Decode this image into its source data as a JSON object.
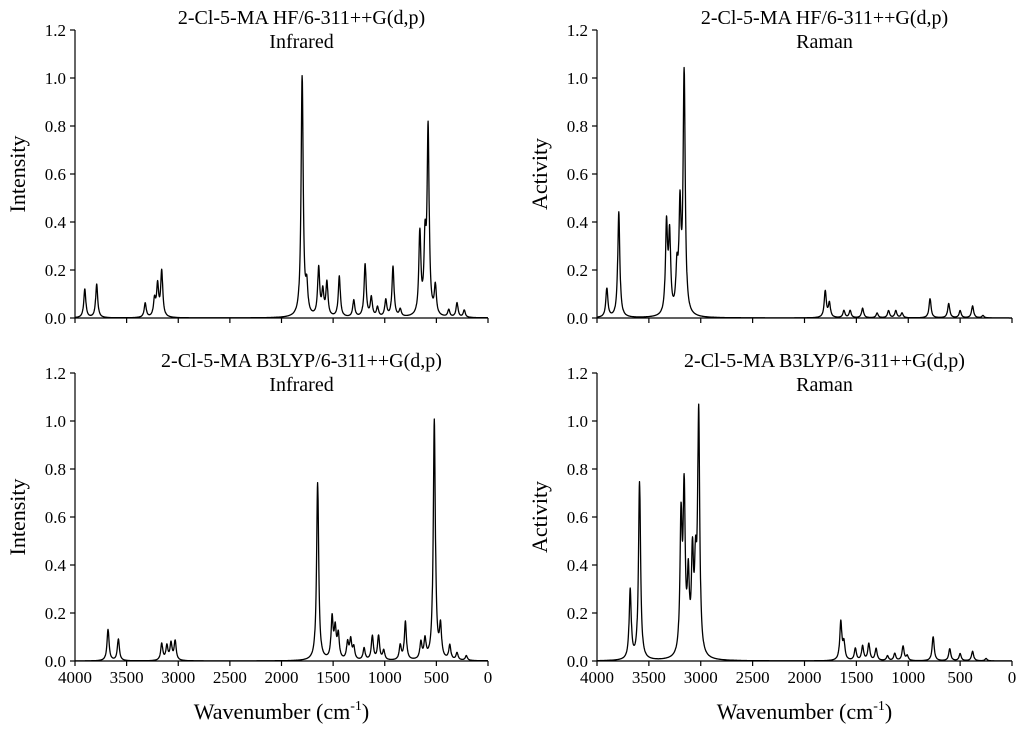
{
  "chart_data": [
    {
      "type": "line",
      "panel": "top-left",
      "title": "2-Cl-5-MA HF/6-311++G(d,p)",
      "subtitle": "Infrared",
      "xlabel": "Wavenumber (cm",
      "xlabel_sup": "-1",
      "xlabel_tail": ")",
      "ylabel": "Intensity",
      "xlim": [
        4000,
        0
      ],
      "ylim": [
        0,
        1.2
      ],
      "x_ticks": [
        "4000",
        "3500",
        "3000",
        "2500",
        "2000",
        "1500",
        "1000",
        "500",
        "0"
      ],
      "y_ticks": [
        "0.0",
        "0.2",
        "0.4",
        "0.6",
        "0.8",
        "1.0",
        "1.2"
      ],
      "show_x_tick_labels": false,
      "grid": false,
      "peaks": [
        {
          "x": 3905,
          "y": 0.12
        },
        {
          "x": 3790,
          "y": 0.14
        },
        {
          "x": 3320,
          "y": 0.06
        },
        {
          "x": 3230,
          "y": 0.07
        },
        {
          "x": 3200,
          "y": 0.13
        },
        {
          "x": 3160,
          "y": 0.19
        },
        {
          "x": 1800,
          "y": 1.0
        },
        {
          "x": 1755,
          "y": 0.11
        },
        {
          "x": 1640,
          "y": 0.2
        },
        {
          "x": 1600,
          "y": 0.1
        },
        {
          "x": 1560,
          "y": 0.14
        },
        {
          "x": 1440,
          "y": 0.17
        },
        {
          "x": 1300,
          "y": 0.07
        },
        {
          "x": 1190,
          "y": 0.22
        },
        {
          "x": 1130,
          "y": 0.08
        },
        {
          "x": 1070,
          "y": 0.04
        },
        {
          "x": 990,
          "y": 0.07
        },
        {
          "x": 920,
          "y": 0.21
        },
        {
          "x": 850,
          "y": 0.03
        },
        {
          "x": 660,
          "y": 0.34
        },
        {
          "x": 610,
          "y": 0.28
        },
        {
          "x": 580,
          "y": 0.77
        },
        {
          "x": 510,
          "y": 0.12
        },
        {
          "x": 380,
          "y": 0.03
        },
        {
          "x": 300,
          "y": 0.06
        },
        {
          "x": 230,
          "y": 0.03
        }
      ]
    },
    {
      "type": "line",
      "panel": "top-right",
      "title": "2-Cl-5-MA HF/6-311++G(d,p)",
      "subtitle": "Raman",
      "xlabel": "Wavenumber (cm",
      "xlabel_sup": "-1",
      "xlabel_tail": ")",
      "ylabel": "Activity",
      "xlim": [
        4000,
        0
      ],
      "ylim": [
        0,
        1.2
      ],
      "x_ticks": [
        "4000",
        "3500",
        "3000",
        "2500",
        "2000",
        "1500",
        "1000",
        "500",
        "0"
      ],
      "y_ticks": [
        "0.0",
        "0.2",
        "0.4",
        "0.6",
        "0.8",
        "1.0",
        "1.2"
      ],
      "show_x_tick_labels": false,
      "grid": false,
      "peaks": [
        {
          "x": 3905,
          "y": 0.12
        },
        {
          "x": 3790,
          "y": 0.44
        },
        {
          "x": 3330,
          "y": 0.37
        },
        {
          "x": 3300,
          "y": 0.32
        },
        {
          "x": 3230,
          "y": 0.17
        },
        {
          "x": 3200,
          "y": 0.42
        },
        {
          "x": 3160,
          "y": 1.0
        },
        {
          "x": 1800,
          "y": 0.11
        },
        {
          "x": 1760,
          "y": 0.06
        },
        {
          "x": 1620,
          "y": 0.03
        },
        {
          "x": 1560,
          "y": 0.03
        },
        {
          "x": 1440,
          "y": 0.04
        },
        {
          "x": 1300,
          "y": 0.02
        },
        {
          "x": 1190,
          "y": 0.03
        },
        {
          "x": 1120,
          "y": 0.03
        },
        {
          "x": 1060,
          "y": 0.02
        },
        {
          "x": 790,
          "y": 0.08
        },
        {
          "x": 610,
          "y": 0.06
        },
        {
          "x": 500,
          "y": 0.03
        },
        {
          "x": 380,
          "y": 0.05
        },
        {
          "x": 280,
          "y": 0.01
        }
      ]
    },
    {
      "type": "line",
      "panel": "bottom-left",
      "title": "2-Cl-5-MA B3LYP/6-311++G(d,p)",
      "subtitle": "Infrared",
      "xlabel": "Wavenumber (cm",
      "xlabel_sup": "-1",
      "xlabel_tail": ")",
      "ylabel": "Intensity",
      "xlim": [
        4000,
        0
      ],
      "ylim": [
        0,
        1.2
      ],
      "x_ticks": [
        "4000",
        "3500",
        "3000",
        "2500",
        "2000",
        "1500",
        "1000",
        "500",
        "0"
      ],
      "y_ticks": [
        "0.0",
        "0.2",
        "0.4",
        "0.6",
        "0.8",
        "1.0",
        "1.2"
      ],
      "show_x_tick_labels": true,
      "grid": false,
      "peaks": [
        {
          "x": 3680,
          "y": 0.13
        },
        {
          "x": 3580,
          "y": 0.09
        },
        {
          "x": 3160,
          "y": 0.07
        },
        {
          "x": 3110,
          "y": 0.06
        },
        {
          "x": 3070,
          "y": 0.07
        },
        {
          "x": 3030,
          "y": 0.08
        },
        {
          "x": 1650,
          "y": 0.74
        },
        {
          "x": 1510,
          "y": 0.17
        },
        {
          "x": 1480,
          "y": 0.12
        },
        {
          "x": 1450,
          "y": 0.1
        },
        {
          "x": 1360,
          "y": 0.07
        },
        {
          "x": 1330,
          "y": 0.08
        },
        {
          "x": 1300,
          "y": 0.05
        },
        {
          "x": 1200,
          "y": 0.05
        },
        {
          "x": 1120,
          "y": 0.1
        },
        {
          "x": 1060,
          "y": 0.1
        },
        {
          "x": 1010,
          "y": 0.04
        },
        {
          "x": 850,
          "y": 0.06
        },
        {
          "x": 800,
          "y": 0.16
        },
        {
          "x": 650,
          "y": 0.07
        },
        {
          "x": 610,
          "y": 0.08
        },
        {
          "x": 520,
          "y": 1.0
        },
        {
          "x": 460,
          "y": 0.13
        },
        {
          "x": 370,
          "y": 0.06
        },
        {
          "x": 300,
          "y": 0.03
        },
        {
          "x": 210,
          "y": 0.02
        }
      ]
    },
    {
      "type": "line",
      "panel": "bottom-right",
      "title": "2-Cl-5-MA B3LYP/6-311++G(d,p)",
      "subtitle": "Raman",
      "xlabel": "Wavenumber (cm",
      "xlabel_sup": "-1",
      "xlabel_tail": ")",
      "ylabel": "Activity",
      "xlim": [
        4000,
        0
      ],
      "ylim": [
        0,
        1.2
      ],
      "x_ticks": [
        "4000",
        "3500",
        "3000",
        "2500",
        "2000",
        "1500",
        "1000",
        "500",
        "0"
      ],
      "y_ticks": [
        "0.0",
        "0.2",
        "0.4",
        "0.6",
        "0.8",
        "1.0",
        "1.2"
      ],
      "show_x_tick_labels": true,
      "grid": false,
      "peaks": [
        {
          "x": 3680,
          "y": 0.29
        },
        {
          "x": 3590,
          "y": 0.74
        },
        {
          "x": 3190,
          "y": 0.55
        },
        {
          "x": 3160,
          "y": 0.66
        },
        {
          "x": 3120,
          "y": 0.3
        },
        {
          "x": 3080,
          "y": 0.39
        },
        {
          "x": 3050,
          "y": 0.31
        },
        {
          "x": 3020,
          "y": 1.0
        },
        {
          "x": 1650,
          "y": 0.16
        },
        {
          "x": 1620,
          "y": 0.07
        },
        {
          "x": 1510,
          "y": 0.05
        },
        {
          "x": 1440,
          "y": 0.06
        },
        {
          "x": 1380,
          "y": 0.07
        },
        {
          "x": 1310,
          "y": 0.05
        },
        {
          "x": 1200,
          "y": 0.02
        },
        {
          "x": 1130,
          "y": 0.03
        },
        {
          "x": 1050,
          "y": 0.06
        },
        {
          "x": 1010,
          "y": 0.02
        },
        {
          "x": 760,
          "y": 0.1
        },
        {
          "x": 600,
          "y": 0.05
        },
        {
          "x": 500,
          "y": 0.03
        },
        {
          "x": 380,
          "y": 0.04
        },
        {
          "x": 250,
          "y": 0.01
        }
      ]
    }
  ]
}
